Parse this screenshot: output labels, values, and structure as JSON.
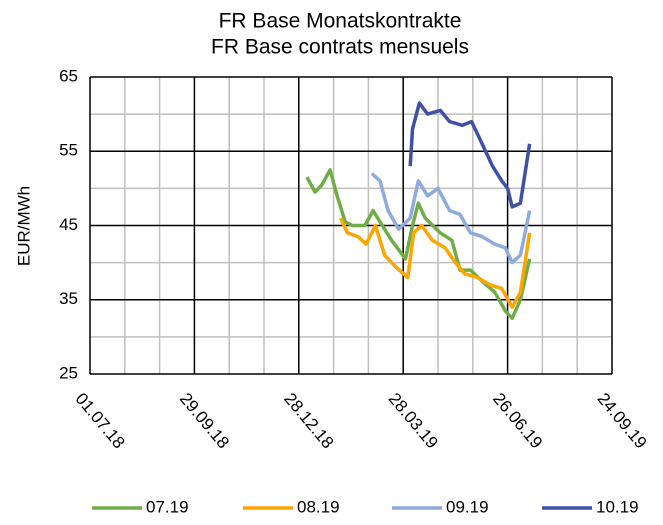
{
  "chart_data": {
    "type": "line",
    "title": "FR Base Monatskontrakte",
    "subtitle": "FR Base contrats mensuels",
    "y_label": "EUR/MWh",
    "xlim": [
      "01.07.18",
      "24.09.19"
    ],
    "xticks": [
      "01.07.18",
      "29.09.18",
      "28.12.18",
      "28.03.19",
      "26.06.19",
      "24.09.19"
    ],
    "minor_xticks": [
      "31.07.18",
      "30.08.18",
      "29.10.18",
      "28.11.18",
      "27.01.19",
      "26.02.19",
      "27.04.19",
      "27.05.19",
      "26.07.19",
      "25.08.19"
    ],
    "ylim": [
      25,
      65
    ],
    "yticks": [
      25,
      35,
      45,
      55,
      65
    ],
    "minor_yticks": [
      30,
      40,
      50,
      60
    ],
    "grid": true,
    "legend": "bottom",
    "series": [
      {
        "name": "07.19",
        "color": "#70ad47",
        "x": [
          "04.01.19",
          "11.01.19",
          "17.01.19",
          "24.01.19",
          "30.01.19",
          "06.02.19",
          "12.02.19",
          "23.02.19",
          "02.03.19",
          "10.03.19",
          "18.03.19",
          "30.03.19",
          "05.04.19",
          "10.04.19",
          "16.04.19",
          "29.04.19",
          "09.05.19",
          "16.05.19",
          "25.05.19",
          "04.06.19",
          "15.06.19",
          "24.06.19",
          "30.06.19",
          "07.07.19",
          "15.07.19"
        ],
        "values": [
          51.5,
          49.5,
          50.5,
          52.5,
          49,
          45.5,
          45,
          45,
          47,
          45,
          43,
          40.5,
          45,
          48,
          46,
          44,
          43,
          39,
          39,
          37.5,
          36,
          33.5,
          32.5,
          35,
          40.5
        ]
      },
      {
        "name": "08.19",
        "color": "#ffa500",
        "x": [
          "02.02.19",
          "08.02.19",
          "17.02.19",
          "24.02.19",
          "04.03.19",
          "12.03.19",
          "21.03.19",
          "01.04.19",
          "06.04.19",
          "13.04.19",
          "22.04.19",
          "03.05.19",
          "12.05.19",
          "20.05.19",
          "31.05.19",
          "11.06.19",
          "21.06.19",
          "30.06.19",
          "07.07.19",
          "15.07.19"
        ],
        "values": [
          46,
          44,
          43.5,
          42.5,
          45,
          41,
          39.5,
          38,
          44,
          45,
          43,
          42,
          40,
          38.5,
          38,
          37,
          36.5,
          34,
          36,
          44
        ]
      },
      {
        "name": "09.19",
        "color": "#8faadc",
        "x": [
          "01.03.19",
          "08.03.19",
          "15.03.19",
          "24.03.19",
          "03.04.19",
          "10.04.19",
          "18.04.19",
          "27.04.19",
          "07.05.19",
          "16.05.19",
          "25.05.19",
          "04.06.19",
          "15.06.19",
          "24.06.19",
          "30.06.19",
          "07.07.19",
          "15.07.19"
        ],
        "values": [
          52,
          51,
          47,
          44.5,
          46,
          51,
          49,
          50,
          47,
          46.5,
          44,
          43.5,
          42.5,
          42,
          40,
          41,
          47
        ]
      },
      {
        "name": "10.19",
        "color": "#3f51a5",
        "x": [
          "03.04.19",
          "05.04.19",
          "11.04.19",
          "18.04.19",
          "29.04.19",
          "07.05.19",
          "18.05.19",
          "26.05.19",
          "04.06.19",
          "13.06.19",
          "21.06.19",
          "26.06.19",
          "30.06.19",
          "07.07.19",
          "15.07.19"
        ],
        "values": [
          53,
          58,
          61.5,
          60,
          60.5,
          59,
          58.5,
          59,
          56,
          53,
          51,
          50,
          47.5,
          48,
          56
        ]
      }
    ]
  }
}
